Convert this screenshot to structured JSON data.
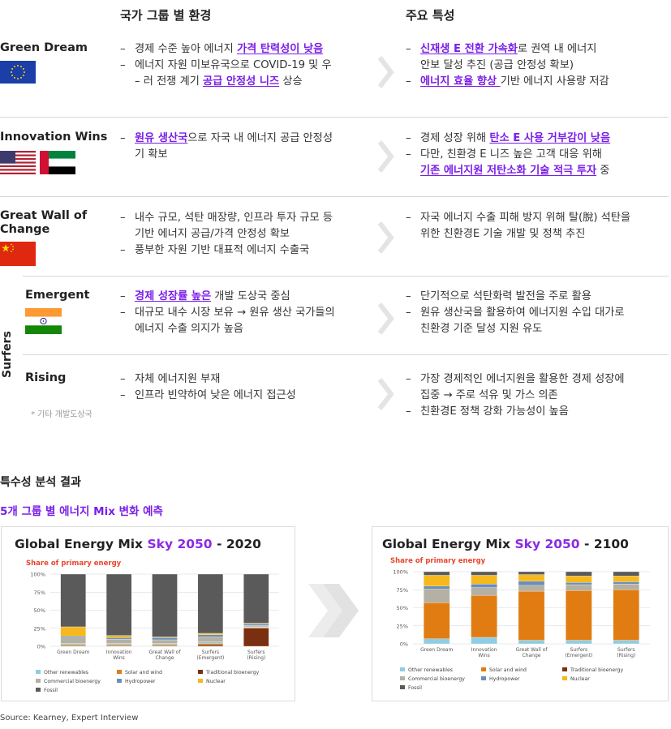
{
  "headers": {
    "left": "국가 그룹 별 환경",
    "right": "주요 특성"
  },
  "groups": [
    {
      "name": "Green Dream",
      "env": [
        [
          {
            "t": "경제 수준 높아 에너지 "
          },
          {
            "t": "가격 탄력성이 낮음",
            "h": true
          }
        ],
        [
          {
            "t": "에너지 자원 미보유국으로 COVID-19 및 우"
          }
        ],
        [
          {
            "t": "– 러 전쟁 계기 "
          },
          {
            "t": "공급 안정성 니즈",
            "h": true
          },
          {
            "t": " 상승"
          }
        ]
      ],
      "traits": [
        [
          {
            "t": "신재생 E 전환 가속화",
            "h": true
          },
          {
            "t": "로 권역 내 에너지"
          }
        ],
        [
          {
            "t": "안보 달성 추진 (공급 안정성 확보)"
          }
        ],
        [
          {
            "t": "에너지 효율 향상 ",
            "h": true
          },
          {
            "t": "기반 에너지 사용량 저감"
          }
        ]
      ]
    },
    {
      "name": "Innovation Wins",
      "env": [
        [
          {
            "t": "원유 생산국",
            "h": true
          },
          {
            "t": "으로 자국 내 에너지 공급 안정성"
          }
        ],
        [
          {
            "t": "기 확보"
          }
        ]
      ],
      "traits": [
        [
          {
            "t": "경제 성장 위해 "
          },
          {
            "t": "탄소 E 사용 거부감이 낮음",
            "h": true
          }
        ],
        [
          {
            "t": "다만, 친환경 E 니즈 높은 고객 대응 위해"
          }
        ],
        [
          {
            "t": "기존 에너지원 저탄소화 기술 적극 투자",
            "h": true
          },
          {
            "t": " 중"
          }
        ]
      ]
    },
    {
      "name1": "Great Wall of",
      "name2": "Change",
      "env": [
        [
          {
            "t": "내수 규모, 석탄 매장량, 인프라 투자 규모 등"
          }
        ],
        [
          {
            "t": "기반 에너지 공급/가격 안정성 확보"
          }
        ],
        [
          {
            "t": "풍부한 자원 기반 대표적 에너지 수출국"
          }
        ]
      ],
      "traits": [
        [
          {
            "t": "자국 에너지 수출 피해 방지 위해 탈(脫) 석탄을"
          }
        ],
        [
          {
            "t": "위한 친환경E 기술 개발 및 정책 추진"
          }
        ]
      ]
    },
    {
      "name": "Emergent",
      "env": [
        [
          {
            "t": "경제 성장률 높은",
            "h": true
          },
          {
            "t": " 개발 도상국 중심"
          }
        ],
        [
          {
            "t": "대규모 내수 시장 보유 → 원유 생산 국가들의"
          }
        ],
        [
          {
            "t": "에너지 수출 의지가 높음"
          }
        ]
      ],
      "traits": [
        [
          {
            "t": "단기적으로 석탄화력 발전을 주로 활용"
          }
        ],
        [
          {
            "t": "원유 생산국을 활용하여 에너지원 수입 대가로"
          }
        ],
        [
          {
            "t": "친환경 기준 달성 지원 유도"
          }
        ]
      ]
    },
    {
      "name": "Rising",
      "note": "* 기타 개발도상국",
      "env": [
        [
          {
            "t": "자체 에너지원 부재"
          }
        ],
        [
          {
            "t": "인프라 빈약하여 낮은 에너지 접근성"
          }
        ]
      ],
      "traits": [
        [
          {
            "t": "가장 경제적인 에너지원을 활용한 경제 성장에"
          }
        ],
        [
          {
            "t": "집중 → 주로 석유 및 가스 의존"
          }
        ],
        [
          {
            "t": "친환경E 정책 강화 가능성이 높음"
          }
        ]
      ]
    }
  ],
  "surfers_label": "Surfers",
  "section": {
    "title": "특수성 분석 결과",
    "subtitle": "5개 그룹 별 에너지 Mix 변화 예측"
  },
  "colors": {
    "accent": "#7a1ee8",
    "Other renewables": "#8ecde3",
    "Commercial bioenergy": "#b5b0a4",
    "Fossil": "#5a5a5a",
    "Solar and wind": "#e07c12",
    "Hydropower": "#6b8fb8",
    "Traditional bioenergy": "#7a3010",
    "Nuclear": "#f6b81c"
  },
  "chart_data": [
    {
      "type": "bar",
      "stacked": true,
      "title": "Global Energy Mix Sky 2050 - 2020",
      "title_parts": [
        "Global Energy Mix ",
        "Sky 2050",
        " - 2020"
      ],
      "subtitle": "Share of primary energy",
      "ylim": [
        0,
        100
      ],
      "yticks": [
        "100%",
        "75%",
        "50%",
        "25%",
        "0%"
      ],
      "categories": [
        "Green Dream",
        "Innovation Wins",
        "Great Wall of Change",
        "Surfers (Emergent)",
        "Surfers (Rising)"
      ],
      "category_lines": [
        [
          "Green Dream"
        ],
        [
          "Innovation",
          "Wins"
        ],
        [
          "Great Wall of",
          "Change"
        ],
        [
          "Surfers",
          "(Emergent)"
        ],
        [
          "Surfers",
          "(Rising)"
        ]
      ],
      "series": [
        {
          "name": "Traditional bioenergy",
          "values": [
            0,
            0,
            0,
            2,
            25
          ]
        },
        {
          "name": "Solar and wind",
          "values": [
            2,
            2,
            2,
            2,
            1
          ]
        },
        {
          "name": "Other renewables",
          "values": [
            2,
            2,
            2,
            2,
            1
          ]
        },
        {
          "name": "Commercial bioenergy",
          "values": [
            8,
            6,
            5,
            7,
            2
          ]
        },
        {
          "name": "Hydropower",
          "values": [
            2,
            2,
            3,
            3,
            2
          ]
        },
        {
          "name": "Nuclear",
          "values": [
            13,
            3,
            1,
            2,
            1
          ]
        },
        {
          "name": "Fossil",
          "values": [
            73,
            85,
            87,
            82,
            68
          ]
        }
      ],
      "legend": [
        "Other renewables",
        "Solar and wind",
        "Traditional bioenergy",
        "Commercial bioenergy",
        "Hydropower",
        "Nuclear",
        "Fossil"
      ]
    },
    {
      "type": "bar",
      "stacked": true,
      "title": "Global Energy Mix Sky 2050 - 2100",
      "title_parts": [
        "Global Energy Mix ",
        "Sky 2050",
        " - 2100"
      ],
      "subtitle": "Share of primary energy",
      "ylim": [
        0,
        100
      ],
      "yticks": [
        "100%",
        "75%",
        "50%",
        "25%",
        "0%"
      ],
      "categories": [
        "Green Dream",
        "Innovation Wins",
        "Great Wall of Change",
        "Surfers (Emergent)",
        "Surfers (Rising)"
      ],
      "category_lines": [
        [
          "Green Dream"
        ],
        [
          "Innovation",
          "Wins"
        ],
        [
          "Great Wall of",
          "Change"
        ],
        [
          "Surfers",
          "(Emergent)"
        ],
        [
          "Surfers",
          "(Rising)"
        ]
      ],
      "series": [
        {
          "name": "Traditional bioenergy",
          "values": [
            0,
            0,
            0,
            0,
            0
          ]
        },
        {
          "name": "Other renewables",
          "values": [
            7,
            9,
            5,
            5,
            5
          ]
        },
        {
          "name": "Solar and wind",
          "values": [
            50,
            58,
            68,
            69,
            70
          ]
        },
        {
          "name": "Commercial bioenergy",
          "values": [
            19,
            11,
            8,
            8,
            8
          ]
        },
        {
          "name": "Hydropower",
          "values": [
            4,
            5,
            6,
            3,
            3
          ]
        },
        {
          "name": "Nuclear",
          "values": [
            15,
            12,
            9,
            9,
            8
          ]
        },
        {
          "name": "Fossil",
          "values": [
            5,
            5,
            4,
            6,
            6
          ]
        }
      ],
      "legend": [
        "Other renewables",
        "Solar and wind",
        "Traditional bioenergy",
        "Commercial bioenergy",
        "Hydropower",
        "Nuclear",
        "Fossil"
      ]
    }
  ],
  "source": "Source: Kearney, Expert Interview"
}
